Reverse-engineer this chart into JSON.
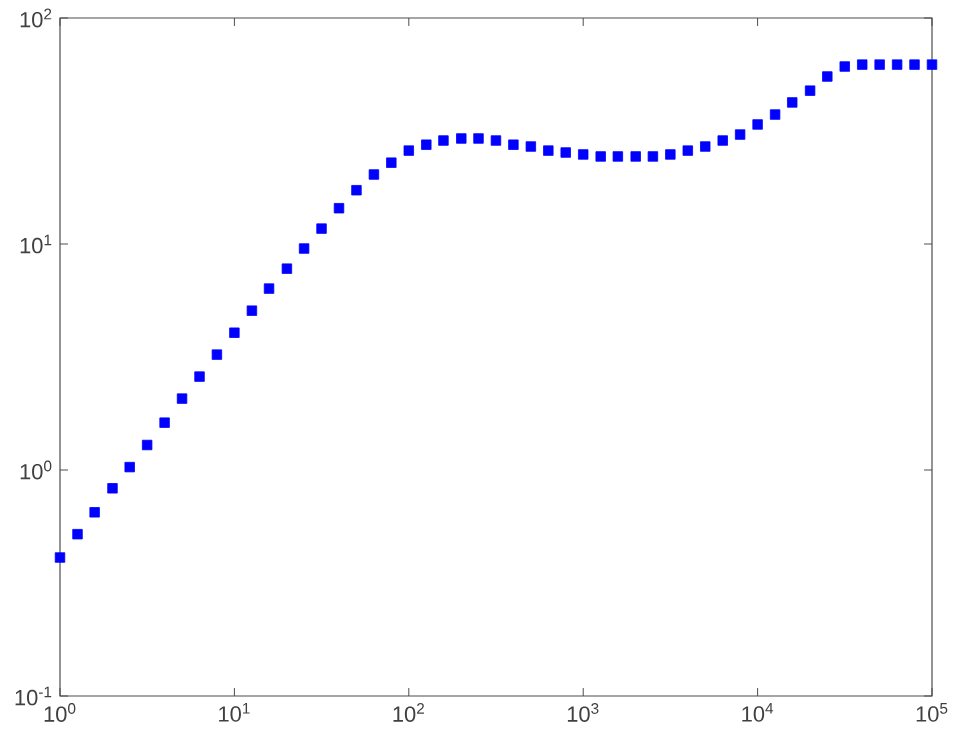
{
  "chart_data": {
    "type": "scatter",
    "log": "xy",
    "marker": "square",
    "grid": false,
    "x": [
      1,
      1.26,
      1.58,
      2.0,
      2.51,
      3.16,
      3.98,
      5.01,
      6.31,
      7.94,
      10,
      12.6,
      15.8,
      20.0,
      25.1,
      31.6,
      39.8,
      50.1,
      63.1,
      79.4,
      100,
      126,
      158,
      200,
      251,
      316,
      398,
      501,
      631,
      794,
      1000,
      1260,
      1580,
      2000,
      2510,
      3160,
      3980,
      5010,
      6310,
      7940,
      10000,
      12600,
      15800,
      20000,
      25100,
      31600,
      39800,
      50100,
      63100,
      79400,
      100000
    ],
    "series": [
      {
        "color": "#0000ff",
        "values": [
          0.41,
          0.52,
          0.65,
          0.83,
          1.03,
          1.29,
          1.62,
          2.07,
          2.59,
          3.24,
          4.05,
          5.07,
          6.35,
          7.78,
          9.55,
          11.7,
          14.4,
          17.3,
          20.3,
          22.9,
          25.9,
          27.5,
          28.7,
          29.3,
          29.3,
          28.7,
          27.5,
          27.0,
          25.9,
          25.4,
          24.9,
          24.4,
          24.4,
          24.4,
          24.4,
          24.9,
          25.9,
          27.0,
          28.7,
          30.5,
          33.8,
          37.4,
          42.3,
          47.7,
          55.1,
          61.0,
          62.2,
          62.2,
          62.2,
          62.2,
          62.2
        ]
      }
    ],
    "xlim": [
      1,
      100000
    ],
    "xticks": [
      {
        "value": 1,
        "label": "10$^{0}$"
      },
      {
        "value": 10,
        "label": "10$^{1}$"
      },
      {
        "value": 100,
        "label": "10$^{2}$"
      },
      {
        "value": 1000,
        "label": "10$^{3}$"
      },
      {
        "value": 10000,
        "label": "10$^{4}$"
      },
      {
        "value": 100000,
        "label": "10$^{5}$"
      }
    ],
    "ylim": [
      0.1,
      100
    ],
    "yticks": [
      {
        "value": 0.1,
        "label": "10$^{-1}$"
      },
      {
        "value": 1,
        "label": "10$^{0}$"
      },
      {
        "value": 10,
        "label": "10$^{1}$"
      },
      {
        "value": 100,
        "label": "10$^{2}$"
      }
    ]
  }
}
